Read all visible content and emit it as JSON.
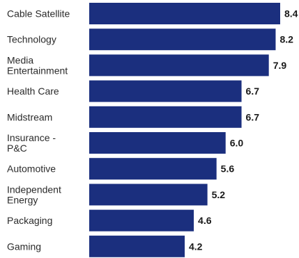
{
  "chart_data": {
    "type": "bar",
    "orientation": "horizontal",
    "categories": [
      "Cable Satellite",
      "Technology",
      "Media\nEntertainment",
      "Health Care",
      "Midstream",
      "Insurance -\nP&C",
      "Automotive",
      "Independent\nEnergy",
      "Packaging",
      "Gaming"
    ],
    "values": [
      8.4,
      8.2,
      7.9,
      6.7,
      6.7,
      6.0,
      5.6,
      5.2,
      4.6,
      4.2
    ],
    "value_labels": [
      "8.4",
      "8.2",
      "7.9",
      "6.7",
      "6.7",
      "6.0",
      "5.6",
      "5.2",
      "4.6",
      "4.2"
    ],
    "title": "",
    "xlabel": "",
    "ylabel": "",
    "xlim": [
      0,
      8.4
    ],
    "grid": false,
    "legend": "none",
    "bar_color": "#1b2f7e"
  }
}
